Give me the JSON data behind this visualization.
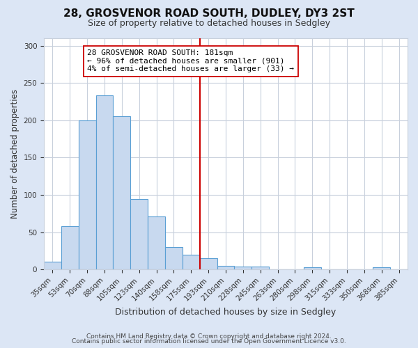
{
  "title": "28, GROSVENOR ROAD SOUTH, DUDLEY, DY3 2ST",
  "subtitle": "Size of property relative to detached houses in Sedgley",
  "xlabel": "Distribution of detached houses by size in Sedgley",
  "ylabel": "Number of detached properties",
  "categories": [
    "35sqm",
    "53sqm",
    "70sqm",
    "88sqm",
    "105sqm",
    "123sqm",
    "140sqm",
    "158sqm",
    "175sqm",
    "193sqm",
    "210sqm",
    "228sqm",
    "245sqm",
    "263sqm",
    "280sqm",
    "298sqm",
    "315sqm",
    "333sqm",
    "350sqm",
    "368sqm",
    "385sqm"
  ],
  "values": [
    10,
    58,
    200,
    233,
    205,
    94,
    71,
    30,
    20,
    15,
    5,
    4,
    4,
    0,
    0,
    3,
    0,
    0,
    0,
    3,
    0
  ],
  "bar_color": "#c8d9ef",
  "bar_edge_color": "#5a9fd4",
  "vline_x_index": 8.5,
  "vline_color": "#cc0000",
  "annotation_text": "28 GROSVENOR ROAD SOUTH: 181sqm\n← 96% of detached houses are smaller (901)\n4% of semi-detached houses are larger (33) →",
  "annotation_box_color": "#ffffff",
  "annotation_box_edge_color": "#cc0000",
  "ylim": [
    0,
    310
  ],
  "yticks": [
    0,
    50,
    100,
    150,
    200,
    250,
    300
  ],
  "figure_background_color": "#dce6f5",
  "plot_background_color": "#ffffff",
  "grid_color": "#c8d0dc",
  "footer_line1": "Contains HM Land Registry data © Crown copyright and database right 2024.",
  "footer_line2": "Contains public sector information licensed under the Open Government Licence v3.0."
}
